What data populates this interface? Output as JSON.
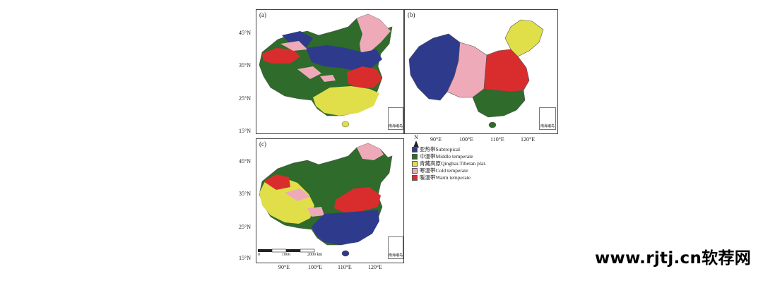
{
  "panels": {
    "a": {
      "label": "(a)",
      "inset_label": "南海诸岛"
    },
    "b": {
      "label": "(b)",
      "inset_label": "南海诸岛"
    },
    "c": {
      "label": "(c)",
      "inset_label": "南海诸岛"
    }
  },
  "y_ticks": [
    "45°N",
    "35°N",
    "25°N",
    "15°N"
  ],
  "x_ticks": [
    "90°E",
    "100°E",
    "110°E",
    "120°E"
  ],
  "north_label": "N",
  "scale_bar": {
    "labels": [
      "0",
      "1000",
      "2000 km"
    ]
  },
  "legend": {
    "items": [
      {
        "label": "亚热带Subtropical",
        "color": "#2e3a8c"
      },
      {
        "label": "中温带Middle temperate",
        "color": "#2f6b2a"
      },
      {
        "label": "青藏高原Qinghai-Tibetan plat.",
        "color": "#e0df4a"
      },
      {
        "label": "寒温带Cold temperate",
        "color": "#eeaab8"
      },
      {
        "label": "暖温带Warm temperate",
        "color": "#d92d2d"
      }
    ]
  },
  "watermark": "www.rjtj.cn软荐网"
}
